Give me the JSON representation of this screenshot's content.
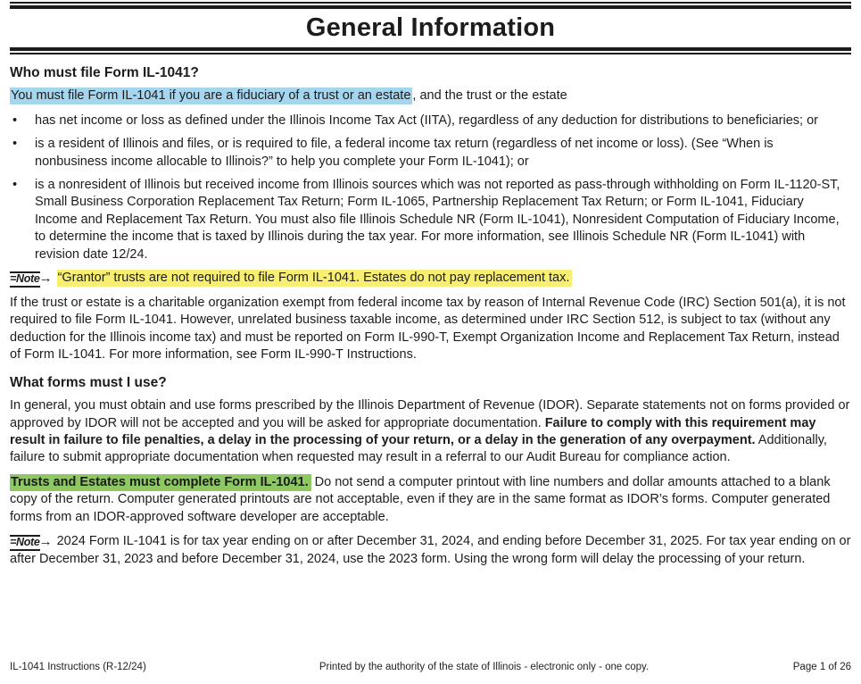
{
  "title": "General Information",
  "bullet_char": "•",
  "note": {
    "glyph": "=Note",
    "arrow": "→"
  },
  "sections": {
    "who": {
      "heading": "Who must file Form IL-1041?",
      "intro_highlight": "You must file Form IL-1041 if you are a fiduciary of a trust or an estate",
      "intro_rest": ", and the trust or the estate",
      "bullets": [
        "has net income or loss as defined under the Illinois Income Tax Act (IITA), regardless of any deduction for distributions to beneficiaries; or",
        "is a resident of Illinois and files, or is required to file, a federal income tax return (regardless of net income or loss). (See “When is nonbusiness income allocable to Illinois?” to help you complete your Form IL-1041); or",
        "is a nonresident of Illinois but received income from Illinois sources which was not reported as pass-through withholding on Form IL-1120-ST, Small Business Corporation Replacement Tax Return; Form IL-1065, Partnership Replacement Tax Return; or Form IL-1041, Fiduciary Income and Replacement Tax Return. You must also file Illinois Schedule NR (Form IL-1041), Nonresident Computation of Fiduciary Income, to determine the income that is taxed by Illinois during the tax year. For more information, see Illinois Schedule NR (Form IL-1041) with revision date 12/24."
      ],
      "note_text": "“Grantor” trusts are not required to file Form IL-1041. Estates do not pay replacement tax.",
      "charitable_paragraph": "If the trust or estate is a charitable organization exempt from federal income tax by reason of Internal Revenue Code (IRC) Section 501(a), it is not required to file Form IL-1041. However, unrelated business taxable income, as determined under IRC Section 512, is subject to tax (without any deduction for the Illinois income tax) and must be reported on Form IL-990-T, Exempt Organization Income and Replacement Tax Return, instead of Form IL-1041. For more information, see Form IL-990-T Instructions."
    },
    "forms": {
      "heading": "What forms must I use?",
      "para1_normal1": "In general, you must obtain and use forms prescribed by the Illinois Department of Revenue (IDOR). Separate statements not on forms provided or approved by IDOR will not be accepted and you will be asked for appropriate documentation. ",
      "para1_bold": "Failure to comply with this requirement may result in failure to file penalties, a delay in the processing of your return, or a delay in the generation of any overpayment.",
      "para1_normal2": " Additionally, failure to submit appropriate documentation when requested may result in a referral to our Audit Bureau for compliance action.",
      "para2_highlight": "Trusts and Estates must complete Form IL-1041.",
      "para2_rest": " Do not send a computer printout with line numbers and dollar amounts attached to a blank copy of the return. Computer generated printouts are not acceptable, even if they are in the same format as IDOR’s forms. Computer generated forms from an IDOR-approved software developer are acceptable.",
      "note_text": "2024 Form IL-1041 is for tax year ending on or after December 31, 2024, and ending before December 31, 2025. For tax year ending on or after December 31, 2023 and before December 31, 2024, use the 2023 form. Using the wrong form will delay the processing of your return."
    }
  },
  "footer": {
    "left": "IL-1041 Instructions (R-12/24)",
    "center": "Printed by the authority of the state of Illinois - electronic only - one copy.",
    "right": "Page 1 of 26"
  },
  "colors": {
    "highlight_blue": "#a5d6ee",
    "highlight_yellow": "#f8ee72",
    "highlight_green": "#8dc863",
    "text": "#1c1c1c"
  }
}
